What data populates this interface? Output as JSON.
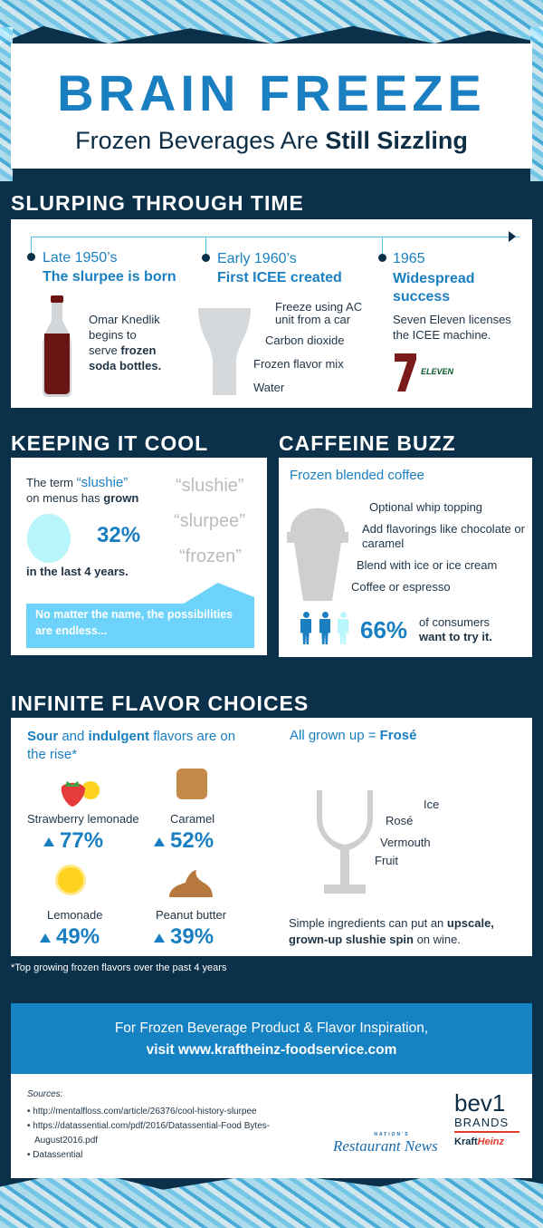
{
  "header": {
    "title": "BRAIN FREEZE",
    "subtitle_pre": "Frozen Beverages Are ",
    "subtitle_bold": "Still Sizzling"
  },
  "timeline": {
    "heading": "SLURPING THROUGH TIME",
    "items": [
      {
        "era": "Late 1950’s",
        "title": "The slurpee is born",
        "desc_pre": "Omar Knedlik begins to serve ",
        "desc_bold": "frozen soda bottles."
      },
      {
        "era": "Early 1960’s",
        "title": "First ICEE created",
        "layers": [
          "Freeze using AC unit from a car",
          "Carbon dioxide",
          "Frozen flavor mix",
          "Water"
        ]
      },
      {
        "era": "1965",
        "title": "Widespread success",
        "desc": "Seven Eleven licenses the ICEE machine.",
        "logo_text": "ELEVEN",
        "logo_num": "7"
      }
    ]
  },
  "cool": {
    "heading": "KEEPING IT COOL",
    "t1": "The term ",
    "t2": "“slushie”",
    "t3": "on menus has ",
    "t4": "grown",
    "pct": "32%",
    "pct_value": 32,
    "t5": "in the last 4 years.",
    "terms": [
      "“slushie”",
      "“slurpee”",
      "“frozen”"
    ],
    "banner": "No matter the name, the possibilities are endless..."
  },
  "caffeine": {
    "heading": "CAFFEINE BUZZ",
    "title": "Frozen blended coffee",
    "layers": [
      "Optional whip topping",
      "Add flavorings like chocolate or caramel",
      "Blend with ice or ice cream",
      "Coffee or espresso"
    ],
    "pct": "66%",
    "pct_value": 66,
    "t1": "of consumers",
    "t2": "want to try it."
  },
  "flavors": {
    "heading": "INFINITE FLAVOR CHOICES",
    "intro_a": "Sour",
    "intro_b": " and ",
    "intro_c": "indulgent",
    "intro_d": " flavors are on the rise*",
    "items": [
      {
        "name": "Strawberry lemonade",
        "pct": "77%"
      },
      {
        "name": "Caramel",
        "pct": "52%"
      },
      {
        "name": "Lemonade",
        "pct": "49%"
      },
      {
        "name": "Peanut butter",
        "pct": "39%"
      }
    ],
    "rose_title_a": "All grown up = ",
    "rose_title_b": "Frosé",
    "rose_layers": [
      "Ice",
      "Rosé",
      "Vermouth",
      "Fruit"
    ],
    "rose_desc_a": "Simple ingredients can put an ",
    "rose_desc_b": "upscale, grown-up slushie spin",
    "rose_desc_c": " on wine.",
    "footnote": "*Top growing frozen flavors over the past 4 years"
  },
  "cta": {
    "line1": "For Frozen Beverage Product & Flavor Inspiration,",
    "line2": "visit www.kraftheinz-foodservice.com"
  },
  "sources": {
    "label": "Sources:",
    "items": [
      "http://mentalfloss.com/article/26376/cool-history-slurpee",
      "https://datassential.com/pdf/2016/Datassential-Food Bytes-August2016.pdf",
      "Datassential"
    ]
  },
  "logos": {
    "nrn_small": "NATION'S",
    "nrn": "Restaurant News",
    "bev": "bev1",
    "brands": "BRANDS",
    "kraft": "Kraft",
    "heinz": "Heinz"
  },
  "colors": {
    "background": "#0b3049",
    "accent": "#1a7fc1",
    "light": "#6fd4fb"
  }
}
